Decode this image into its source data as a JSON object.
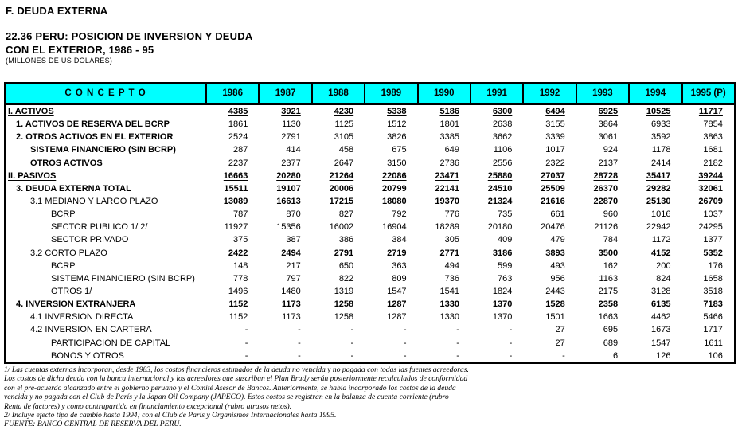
{
  "page": {
    "section_title": "F. DEUDA EXTERNA",
    "table_title_line1": "22.36  PERU: POSICION DE INVERSION Y DEUDA",
    "table_title_line2": "CON EL EXTERIOR, 1986 - 95",
    "units": "(MILLONES DE US DOLARES)"
  },
  "colors": {
    "header_bg": "#00FFFF",
    "border": "#000000"
  },
  "table": {
    "concept_header": "C O N C E P T O",
    "years": [
      "1986",
      "1987",
      "1988",
      "1989",
      "1990",
      "1991",
      "1992",
      "1993",
      "1994",
      "1995 (P)"
    ],
    "rows": [
      {
        "label": "I.  ACTIVOS",
        "indent": 0,
        "bold_label": true,
        "bold_values": true,
        "underline": true,
        "values": [
          "4385",
          "3921",
          "4230",
          "5338",
          "5186",
          "6300",
          "6494",
          "6925",
          "10525",
          "11717"
        ]
      },
      {
        "label": "1. ACTIVOS DE RESERVA DEL BCRP",
        "indent": 1,
        "bold_label": true,
        "bold_values": false,
        "underline": false,
        "values": [
          "1861",
          "1130",
          "1125",
          "1512",
          "1801",
          "2638",
          "3155",
          "3864",
          "6933",
          "7854"
        ]
      },
      {
        "label": "2. OTROS ACTIVOS EN EL EXTERIOR",
        "indent": 1,
        "bold_label": true,
        "bold_values": false,
        "underline": false,
        "values": [
          "2524",
          "2791",
          "3105",
          "3826",
          "3385",
          "3662",
          "3339",
          "3061",
          "3592",
          "3863"
        ]
      },
      {
        "label": "SISTEMA FINANCIERO (SIN BCRP)",
        "indent": 2,
        "bold_label": true,
        "bold_values": false,
        "underline": false,
        "values": [
          "287",
          "414",
          "458",
          "675",
          "649",
          "1106",
          "1017",
          "924",
          "1178",
          "1681"
        ]
      },
      {
        "label": "OTROS ACTIVOS",
        "indent": 2,
        "bold_label": true,
        "bold_values": false,
        "underline": false,
        "values": [
          "2237",
          "2377",
          "2647",
          "3150",
          "2736",
          "2556",
          "2322",
          "2137",
          "2414",
          "2182"
        ]
      },
      {
        "label": "II. PASIVOS",
        "indent": 0,
        "bold_label": true,
        "bold_values": true,
        "underline": true,
        "values": [
          "16663",
          "20280",
          "21264",
          "22086",
          "23471",
          "25880",
          "27037",
          "28728",
          "35417",
          "39244"
        ]
      },
      {
        "label": "3. DEUDA EXTERNA TOTAL",
        "indent": 1,
        "bold_label": true,
        "bold_values": true,
        "underline": false,
        "values": [
          "15511",
          "19107",
          "20006",
          "20799",
          "22141",
          "24510",
          "25509",
          "26370",
          "29282",
          "32061"
        ]
      },
      {
        "label": "3.1 MEDIANO Y LARGO PLAZO",
        "indent": 2,
        "bold_label": false,
        "bold_values": true,
        "underline": false,
        "values": [
          "13089",
          "16613",
          "17215",
          "18080",
          "19370",
          "21324",
          "21616",
          "22870",
          "25130",
          "26709"
        ]
      },
      {
        "label": "BCRP",
        "indent": 3,
        "bold_label": false,
        "bold_values": false,
        "underline": false,
        "values": [
          "787",
          "870",
          "827",
          "792",
          "776",
          "735",
          "661",
          "960",
          "1016",
          "1037"
        ]
      },
      {
        "label": "SECTOR PUBLICO 1/  2/",
        "indent": 3,
        "bold_label": false,
        "bold_values": false,
        "underline": false,
        "values": [
          "11927",
          "15356",
          "16002",
          "16904",
          "18289",
          "20180",
          "20476",
          "21126",
          "22942",
          "24295"
        ]
      },
      {
        "label": "SECTOR PRIVADO",
        "indent": 3,
        "bold_label": false,
        "bold_values": false,
        "underline": false,
        "values": [
          "375",
          "387",
          "386",
          "384",
          "305",
          "409",
          "479",
          "784",
          "1172",
          "1377"
        ]
      },
      {
        "label": "3.2 CORTO PLAZO",
        "indent": 2,
        "bold_label": false,
        "bold_values": true,
        "underline": false,
        "values": [
          "2422",
          "2494",
          "2791",
          "2719",
          "2771",
          "3186",
          "3893",
          "3500",
          "4152",
          "5352"
        ]
      },
      {
        "label": "BCRP",
        "indent": 3,
        "bold_label": false,
        "bold_values": false,
        "underline": false,
        "values": [
          "148",
          "217",
          "650",
          "363",
          "494",
          "599",
          "493",
          "162",
          "200",
          "176"
        ]
      },
      {
        "label": "SISTEMA FINANCIERO (SIN BCRP)",
        "indent": 3,
        "bold_label": false,
        "bold_values": false,
        "underline": false,
        "values": [
          "778",
          "797",
          "822",
          "809",
          "736",
          "763",
          "956",
          "1163",
          "824",
          "1658"
        ]
      },
      {
        "label": "OTROS 1/",
        "indent": 3,
        "bold_label": false,
        "bold_values": false,
        "underline": false,
        "values": [
          "1496",
          "1480",
          "1319",
          "1547",
          "1541",
          "1824",
          "2443",
          "2175",
          "3128",
          "3518"
        ]
      },
      {
        "label": "4. INVERSION EXTRANJERA",
        "indent": 1,
        "bold_label": true,
        "bold_values": true,
        "underline": false,
        "values": [
          "1152",
          "1173",
          "1258",
          "1287",
          "1330",
          "1370",
          "1528",
          "2358",
          "6135",
          "7183"
        ]
      },
      {
        "label": "4.1 INVERSION DIRECTA",
        "indent": 2,
        "bold_label": false,
        "bold_values": false,
        "underline": false,
        "values": [
          "1152",
          "1173",
          "1258",
          "1287",
          "1330",
          "1370",
          "1501",
          "1663",
          "4462",
          "5466"
        ]
      },
      {
        "label": "4.2 INVERSION EN CARTERA",
        "indent": 2,
        "bold_label": false,
        "bold_values": false,
        "underline": false,
        "values": [
          "-",
          "-",
          "-",
          "-",
          "-",
          "-",
          "27",
          "695",
          "1673",
          "1717"
        ]
      },
      {
        "label": "PARTICIPACION DE CAPITAL",
        "indent": 3,
        "bold_label": false,
        "bold_values": false,
        "underline": false,
        "values": [
          "-",
          "-",
          "-",
          "-",
          "-",
          "-",
          "27",
          "689",
          "1547",
          "1611"
        ]
      },
      {
        "label": "BONOS Y OTROS",
        "indent": 3,
        "bold_label": false,
        "bold_values": false,
        "underline": false,
        "values": [
          "-",
          "-",
          "-",
          "-",
          "-",
          "-",
          "-",
          "6",
          "126",
          "106"
        ]
      }
    ]
  },
  "footnotes": [
    "1/ Las cuentas externas incorporan, desde 1983, los costos financieros estimados de la deuda no vencida y no pagada con todas las fuentes acreedoras.",
    "Los costos de dicha deuda con la banca internacional y los acreedores que suscriban el Plan Brady serán posteriormente recalculados de conformidad",
    "con el pre-acuerdo alcanzado entre el gobierno peruano y el Comité Asesor de Bancos. Anteriormente, se había incorporado los costos de la deuda",
    "vencida y no pagada con el Club de París y la Japan Oil Company (JAPECO). Estos costos se registran en la balanza de cuenta corriente (rubro",
    "Renta de factores) y como contrapartida en financiamiento excepcional (rubro atrasos netos).",
    "2/ Incluye efecto tipo de cambio hasta 1994; con el Club de París y Organismos Internacionales hasta 1995.",
    "FUENTE: BANCO CENTRAL DE RESERVA DEL PERU."
  ]
}
